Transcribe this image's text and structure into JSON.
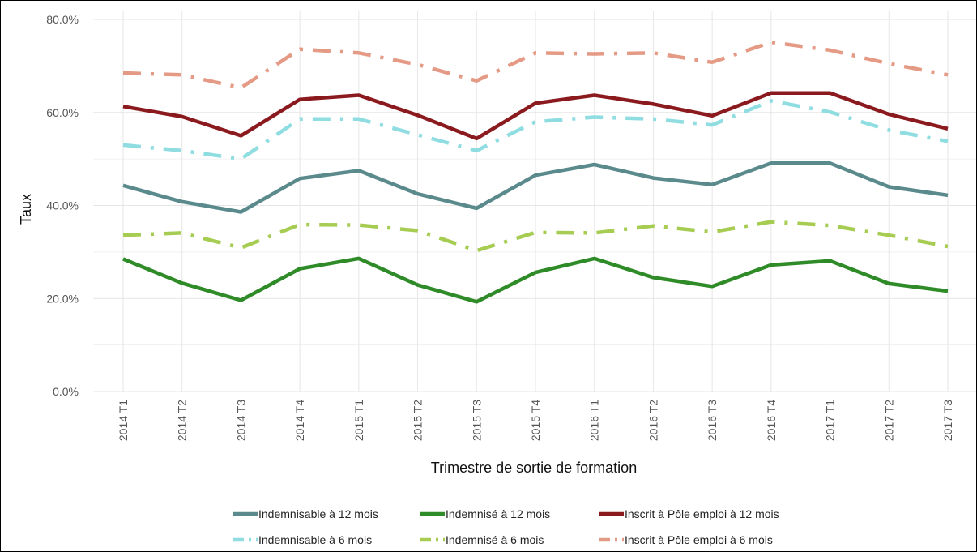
{
  "chart_data": {
    "type": "line",
    "title": "",
    "xlabel": "Trimestre de sortie de formation",
    "ylabel": "Taux",
    "ylim": [
      0,
      80
    ],
    "yticks": [
      "0.0%",
      "20.0%",
      "40.0%",
      "60.0%",
      "80.0%"
    ],
    "grid": true,
    "legend_position": "bottom",
    "categories": [
      "2014 T1",
      "2014 T2",
      "2014 T3",
      "2014 T4",
      "2015 T1",
      "2015 T2",
      "2015 T3",
      "2015 T4",
      "2016 T1",
      "2016 T2",
      "2016 T3",
      "2016 T4",
      "2017 T1",
      "2017 T2",
      "2017 T3"
    ],
    "series": [
      {
        "name": "Indemnisable à 12 mois",
        "color": "#5a8a8c",
        "dash": "solid",
        "values": [
          44.3,
          40.8,
          38.6,
          45.8,
          47.5,
          42.5,
          39.4,
          46.5,
          48.8,
          45.9,
          44.5,
          49.1,
          49.1,
          44.0,
          42.2
        ]
      },
      {
        "name": "Indemnisé à 12 mois",
        "color": "#2e8b27",
        "dash": "solid",
        "values": [
          28.5,
          23.3,
          19.6,
          26.4,
          28.6,
          22.9,
          19.3,
          25.6,
          28.6,
          24.5,
          22.6,
          27.2,
          28.1,
          23.2,
          21.6
        ]
      },
      {
        "name": "Inscrit à Pôle emploi à 12 mois",
        "color": "#8b1a1f",
        "dash": "solid",
        "values": [
          61.3,
          59.1,
          55.0,
          62.8,
          63.7,
          59.4,
          54.4,
          62.0,
          63.7,
          61.8,
          59.3,
          64.2,
          64.2,
          59.6,
          56.5
        ]
      },
      {
        "name": "Indemnisable à 6 mois",
        "color": "#8fdde0",
        "dash": "dashed",
        "values": [
          53.0,
          51.8,
          50.0,
          58.6,
          58.6,
          55.2,
          51.8,
          58.0,
          59.0,
          58.6,
          57.3,
          62.5,
          60.1,
          56.2,
          53.8
        ]
      },
      {
        "name": "Indemnisé à 6 mois",
        "color": "#a6cc52",
        "dash": "dashed",
        "values": [
          33.6,
          34.1,
          30.9,
          35.9,
          35.8,
          34.6,
          30.3,
          34.2,
          34.1,
          35.6,
          34.3,
          36.5,
          35.7,
          33.6,
          31.2
        ]
      },
      {
        "name": "Inscrit à Pôle emploi à 6 mois",
        "color": "#e49a85",
        "dash": "dashed",
        "values": [
          68.5,
          68.1,
          65.3,
          73.6,
          72.8,
          70.3,
          66.8,
          72.8,
          72.6,
          72.8,
          70.8,
          75.1,
          73.4,
          70.5,
          68.1
        ]
      }
    ]
  }
}
